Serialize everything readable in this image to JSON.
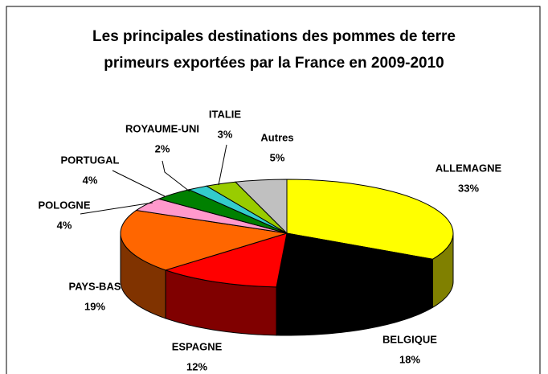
{
  "chart_data": {
    "type": "pie3d",
    "title": [
      "Les principales destinations des pommes de terre",
      "primeurs exportées par la France en 2009-2010"
    ],
    "categories": [
      "ALLEMAGNE",
      "BELGIQUE",
      "ESPAGNE",
      "PAYS-BAS",
      "POLOGNE",
      "PORTUGAL",
      "ROYAUME-UNI",
      "ITALIE",
      "Autres"
    ],
    "values": [
      33,
      18,
      12,
      19,
      4,
      4,
      2,
      3,
      5
    ],
    "value_labels": [
      "33%",
      "18%",
      "12%",
      "19%",
      "4%",
      "4%",
      "2%",
      "3%",
      "5%"
    ],
    "colors": [
      "#ffff00",
      "#000000",
      "#ff0000",
      "#ff6600",
      "#ff99cc",
      "#008000",
      "#33cccc",
      "#99cc00",
      "#c0c0c0"
    ]
  }
}
